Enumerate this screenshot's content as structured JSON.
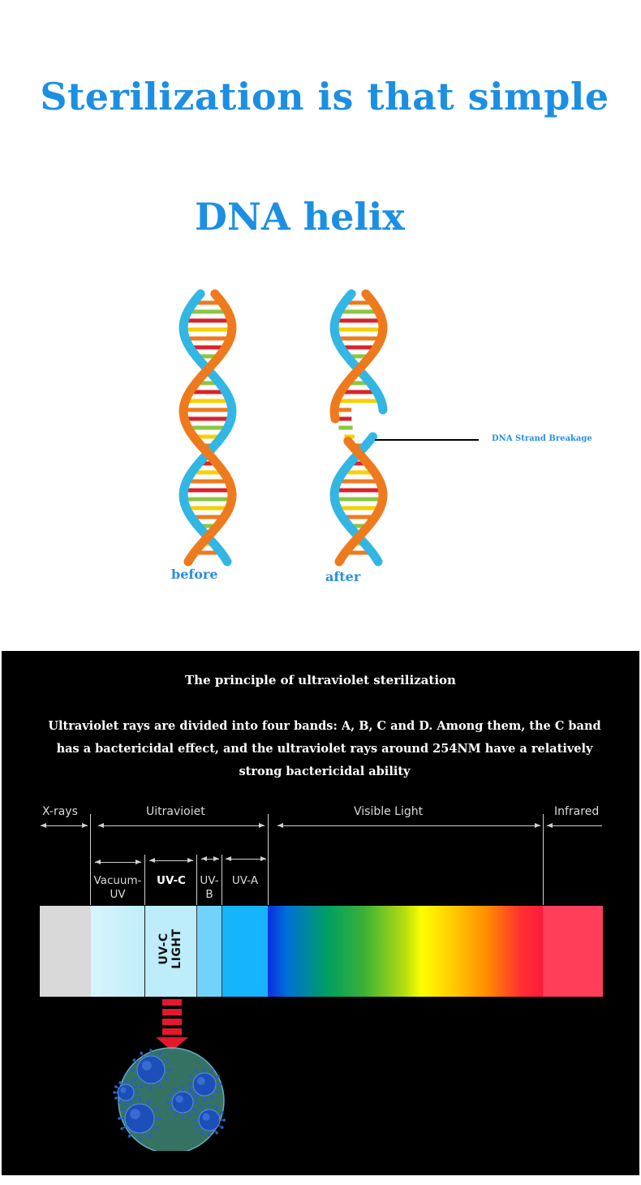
{
  "header": {
    "title": "Sterilization is that simple",
    "subtitle": "DNA helix"
  },
  "dna": {
    "before_label": "before",
    "after_label": "after",
    "breakage_label": "DNA Strand Breakage",
    "colors": {
      "orange": "#ee7a1e",
      "blue": "#32b6e3",
      "red": "#d8232a",
      "yellow": "#f6d000",
      "green": "#8cc63f"
    }
  },
  "principle": {
    "title": "The principle of ultraviolet sterilization",
    "body": "Ultraviolet rays are divided into four bands: A, B, C and D. Among them, the C band has a bactericidal effect, and the ultraviolet rays around 254NM have a relatively strong bactericidal ability"
  },
  "spectrum": {
    "x_rays": "X-rays",
    "ultraviolet": "Uitravioiet",
    "visible": "Visible Light",
    "infrared": "Infrared",
    "vacuum_uv": "Vacuum-UV",
    "uv_c": "UV-C",
    "uv_b": "UV-B",
    "uv_a": "UV-A",
    "uvc_light": "UV-C LIGHT",
    "colors": {
      "xray": "#d9d9d9",
      "infrared": "#ff3f5a",
      "arrow": "#e3182d"
    }
  }
}
